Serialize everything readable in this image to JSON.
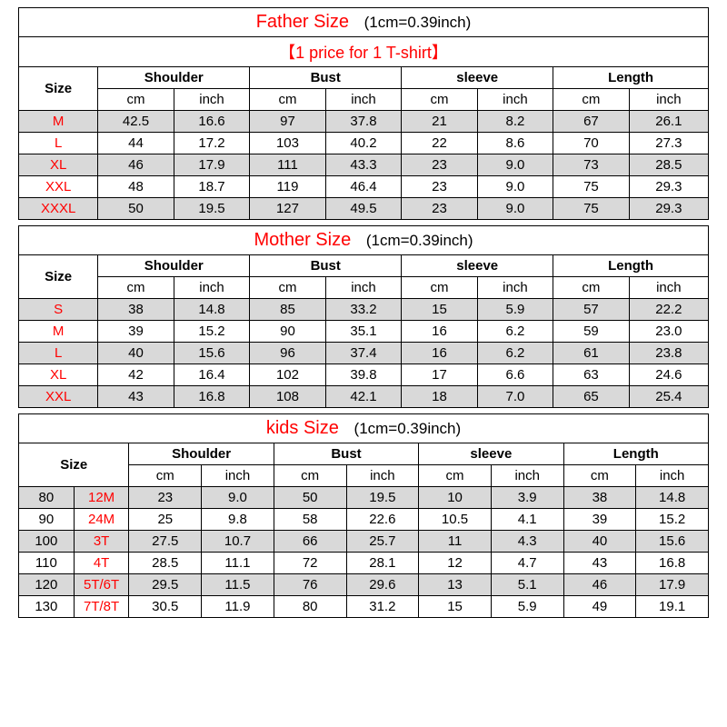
{
  "conversion_note": "(1cm=0.39inch)",
  "subtitle": "【1 price for 1 T-shirt】",
  "headers": {
    "size": "Size",
    "shoulder": "Shoulder",
    "bust": "Bust",
    "sleeve": "sleeve",
    "length": "Length",
    "cm": "cm",
    "inch": "inch"
  },
  "colors": {
    "shade_bg": "#d9d9d9",
    "red": "#ff0000",
    "border": "#000000",
    "bg": "#ffffff"
  },
  "typography": {
    "title_fontsize": 20,
    "cell_fontsize": 15,
    "header_fontweight": "bold",
    "font_family": "Arial, sans-serif"
  },
  "father": {
    "title": "Father Size",
    "rows": [
      {
        "size": "M",
        "shade": true,
        "shoulder_cm": "42.5",
        "shoulder_in": "16.6",
        "bust_cm": "97",
        "bust_in": "37.8",
        "sleeve_cm": "21",
        "sleeve_in": "8.2",
        "length_cm": "67",
        "length_in": "26.1"
      },
      {
        "size": "L",
        "shade": false,
        "shoulder_cm": "44",
        "shoulder_in": "17.2",
        "bust_cm": "103",
        "bust_in": "40.2",
        "sleeve_cm": "22",
        "sleeve_in": "8.6",
        "length_cm": "70",
        "length_in": "27.3"
      },
      {
        "size": "XL",
        "shade": true,
        "shoulder_cm": "46",
        "shoulder_in": "17.9",
        "bust_cm": "111",
        "bust_in": "43.3",
        "sleeve_cm": "23",
        "sleeve_in": "9.0",
        "length_cm": "73",
        "length_in": "28.5"
      },
      {
        "size": "XXL",
        "shade": false,
        "shoulder_cm": "48",
        "shoulder_in": "18.7",
        "bust_cm": "119",
        "bust_in": "46.4",
        "sleeve_cm": "23",
        "sleeve_in": "9.0",
        "length_cm": "75",
        "length_in": "29.3"
      },
      {
        "size": "XXXL",
        "shade": true,
        "shoulder_cm": "50",
        "shoulder_in": "19.5",
        "bust_cm": "127",
        "bust_in": "49.5",
        "sleeve_cm": "23",
        "sleeve_in": "9.0",
        "length_cm": "75",
        "length_in": "29.3"
      }
    ]
  },
  "mother": {
    "title": "Mother   Size",
    "rows": [
      {
        "size": "S",
        "shade": true,
        "shoulder_cm": "38",
        "shoulder_in": "14.8",
        "bust_cm": "85",
        "bust_in": "33.2",
        "sleeve_cm": "15",
        "sleeve_in": "5.9",
        "length_cm": "57",
        "length_in": "22.2"
      },
      {
        "size": "M",
        "shade": false,
        "shoulder_cm": "39",
        "shoulder_in": "15.2",
        "bust_cm": "90",
        "bust_in": "35.1",
        "sleeve_cm": "16",
        "sleeve_in": "6.2",
        "length_cm": "59",
        "length_in": "23.0"
      },
      {
        "size": "L",
        "shade": true,
        "shoulder_cm": "40",
        "shoulder_in": "15.6",
        "bust_cm": "96",
        "bust_in": "37.4",
        "sleeve_cm": "16",
        "sleeve_in": "6.2",
        "length_cm": "61",
        "length_in": "23.8"
      },
      {
        "size": "XL",
        "shade": false,
        "shoulder_cm": "42",
        "shoulder_in": "16.4",
        "bust_cm": "102",
        "bust_in": "39.8",
        "sleeve_cm": "17",
        "sleeve_in": "6.6",
        "length_cm": "63",
        "length_in": "24.6"
      },
      {
        "size": "XXL",
        "shade": true,
        "shoulder_cm": "43",
        "shoulder_in": "16.8",
        "bust_cm": "108",
        "bust_in": "42.1",
        "sleeve_cm": "18",
        "sleeve_in": "7.0",
        "length_cm": "65",
        "length_in": "25.4"
      }
    ]
  },
  "kids": {
    "title": "kids Size",
    "rows": [
      {
        "size": "80",
        "age": "12M",
        "shade": true,
        "shoulder_cm": "23",
        "shoulder_in": "9.0",
        "bust_cm": "50",
        "bust_in": "19.5",
        "sleeve_cm": "10",
        "sleeve_in": "3.9",
        "length_cm": "38",
        "length_in": "14.8"
      },
      {
        "size": "90",
        "age": "24M",
        "shade": false,
        "shoulder_cm": "25",
        "shoulder_in": "9.8",
        "bust_cm": "58",
        "bust_in": "22.6",
        "sleeve_cm": "10.5",
        "sleeve_in": "4.1",
        "length_cm": "39",
        "length_in": "15.2"
      },
      {
        "size": "100",
        "age": "3T",
        "shade": true,
        "shoulder_cm": "27.5",
        "shoulder_in": "10.7",
        "bust_cm": "66",
        "bust_in": "25.7",
        "sleeve_cm": "11",
        "sleeve_in": "4.3",
        "length_cm": "40",
        "length_in": "15.6"
      },
      {
        "size": "110",
        "age": "4T",
        "shade": false,
        "shoulder_cm": "28.5",
        "shoulder_in": "11.1",
        "bust_cm": "72",
        "bust_in": "28.1",
        "sleeve_cm": "12",
        "sleeve_in": "4.7",
        "length_cm": "43",
        "length_in": "16.8"
      },
      {
        "size": "120",
        "age": "5T/6T",
        "shade": true,
        "shoulder_cm": "29.5",
        "shoulder_in": "11.5",
        "bust_cm": "76",
        "bust_in": "29.6",
        "sleeve_cm": "13",
        "sleeve_in": "5.1",
        "length_cm": "46",
        "length_in": "17.9"
      },
      {
        "size": "130",
        "age": "7T/8T",
        "shade": false,
        "shoulder_cm": "30.5",
        "shoulder_in": "11.9",
        "bust_cm": "80",
        "bust_in": "31.2",
        "sleeve_cm": "15",
        "sleeve_in": "5.9",
        "length_cm": "49",
        "length_in": "19.1"
      }
    ]
  }
}
